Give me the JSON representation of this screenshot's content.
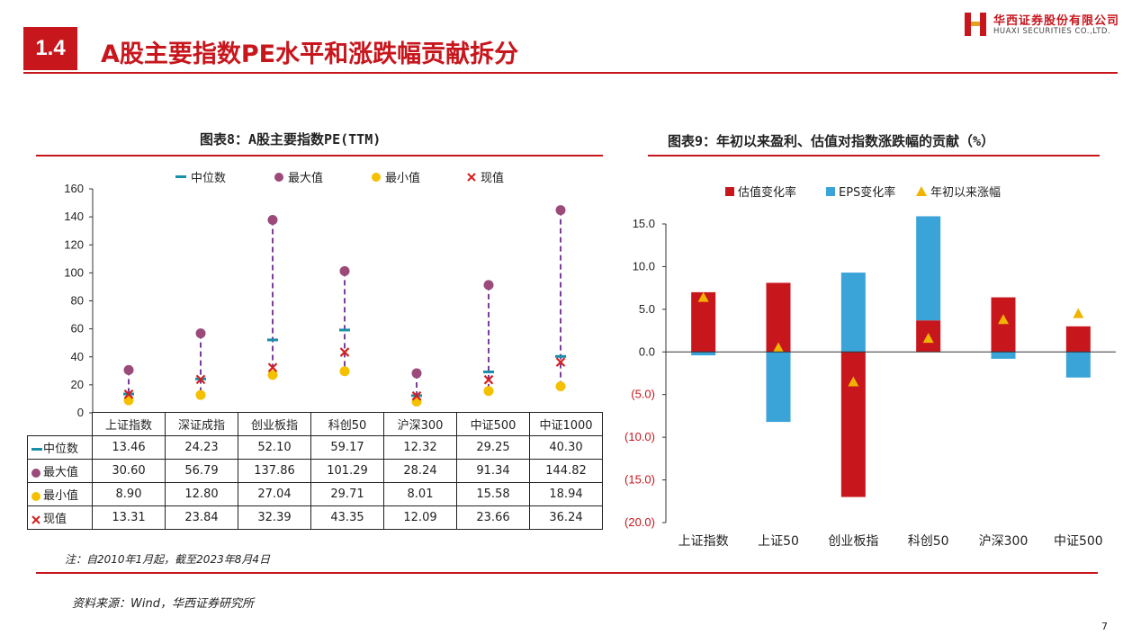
{
  "header": {
    "section_number": "1.4",
    "title": "A股主要指数PE水平和涨跌幅贡献拆分",
    "logo_cn": "华西证券股份有限公司",
    "logo_en": "HUAXI SECURITIES CO.,LTD."
  },
  "colors": {
    "brand_red": "#c8161d",
    "blue": "#3aa3d8",
    "purple": "#9b4a7a",
    "yellow": "#f5c000",
    "teal": "#1a8fa8",
    "cross_red": "#d42020",
    "dash_purple": "#7a3d9a",
    "gold": "#f0b400"
  },
  "chart_data": [
    {
      "type": "scatter",
      "title": "图表8：A股主要指数PE(TTM)",
      "categories": [
        "上证指数",
        "深证成指",
        "创业板指",
        "科创50",
        "沪深300",
        "中证500",
        "中证1000"
      ],
      "series": [
        {
          "name": "中位数",
          "values": [
            13.46,
            24.23,
            52.1,
            59.17,
            12.32,
            29.25,
            40.3
          ],
          "marker": "dash"
        },
        {
          "name": "最大值",
          "values": [
            30.6,
            56.79,
            137.86,
            101.29,
            28.24,
            91.34,
            144.82
          ],
          "marker": "circle"
        },
        {
          "name": "最小值",
          "values": [
            8.9,
            12.8,
            27.04,
            29.71,
            8.01,
            15.58,
            18.94
          ],
          "marker": "circle"
        },
        {
          "name": "现值",
          "values": [
            13.31,
            23.84,
            32.39,
            43.35,
            12.09,
            23.66,
            36.24
          ],
          "marker": "x"
        }
      ],
      "table_rows": [
        {
          "label": "中位数",
          "cells": [
            "13.46",
            "24.23",
            "52.10",
            "59.17",
            "12.32",
            "29.25",
            "40.30"
          ]
        },
        {
          "label": "最大值",
          "cells": [
            "30.60",
            "56.79",
            "137.86",
            "101.29",
            "28.24",
            "91.34",
            "144.82"
          ]
        },
        {
          "label": "最小值",
          "cells": [
            "8.90",
            "12.80",
            "27.04",
            "29.71",
            "8.01",
            "15.58",
            "18.94"
          ]
        },
        {
          "label": "现值",
          "cells": [
            "13.31",
            "23.84",
            "32.39",
            "43.35",
            "12.09",
            "23.66",
            "36.24"
          ]
        }
      ],
      "ylim": [
        0,
        160
      ],
      "yticks": [
        "0",
        "20",
        "40",
        "60",
        "80",
        "100",
        "120",
        "140",
        "160"
      ],
      "xlabel": "",
      "ylabel": "",
      "legend_position": "top"
    },
    {
      "type": "bar",
      "title": "图表9：年初以来盈利、估值对指数涨跌幅的贡献（%）",
      "categories": [
        "上证指数",
        "上证50",
        "创业板指",
        "科创50",
        "沪深300",
        "中证500"
      ],
      "series": [
        {
          "name": "估值变化率",
          "values": [
            7.0,
            8.1,
            -17.0,
            3.7,
            6.4,
            3.0
          ]
        },
        {
          "name": "EPS变化率",
          "values": [
            -0.4,
            -8.2,
            9.3,
            12.2,
            -0.8,
            -3.0
          ]
        },
        {
          "name": "年初以来涨幅",
          "values": [
            6.4,
            0.5,
            -3.5,
            1.6,
            3.8,
            4.5
          ]
        }
      ],
      "ylim": [
        -20,
        15
      ],
      "yticks": [
        "15.0",
        "10.0",
        "5.0",
        "0.0",
        "(5.0)",
        "(10.0)",
        "(15.0)",
        "(20.0)"
      ],
      "xlabel": "",
      "ylabel": "",
      "legend_position": "top"
    }
  ],
  "note": "注：自2010年1月起，截至2023年8月4日",
  "source": "资料来源：Wind，华西证券研究所",
  "page_number": "7"
}
